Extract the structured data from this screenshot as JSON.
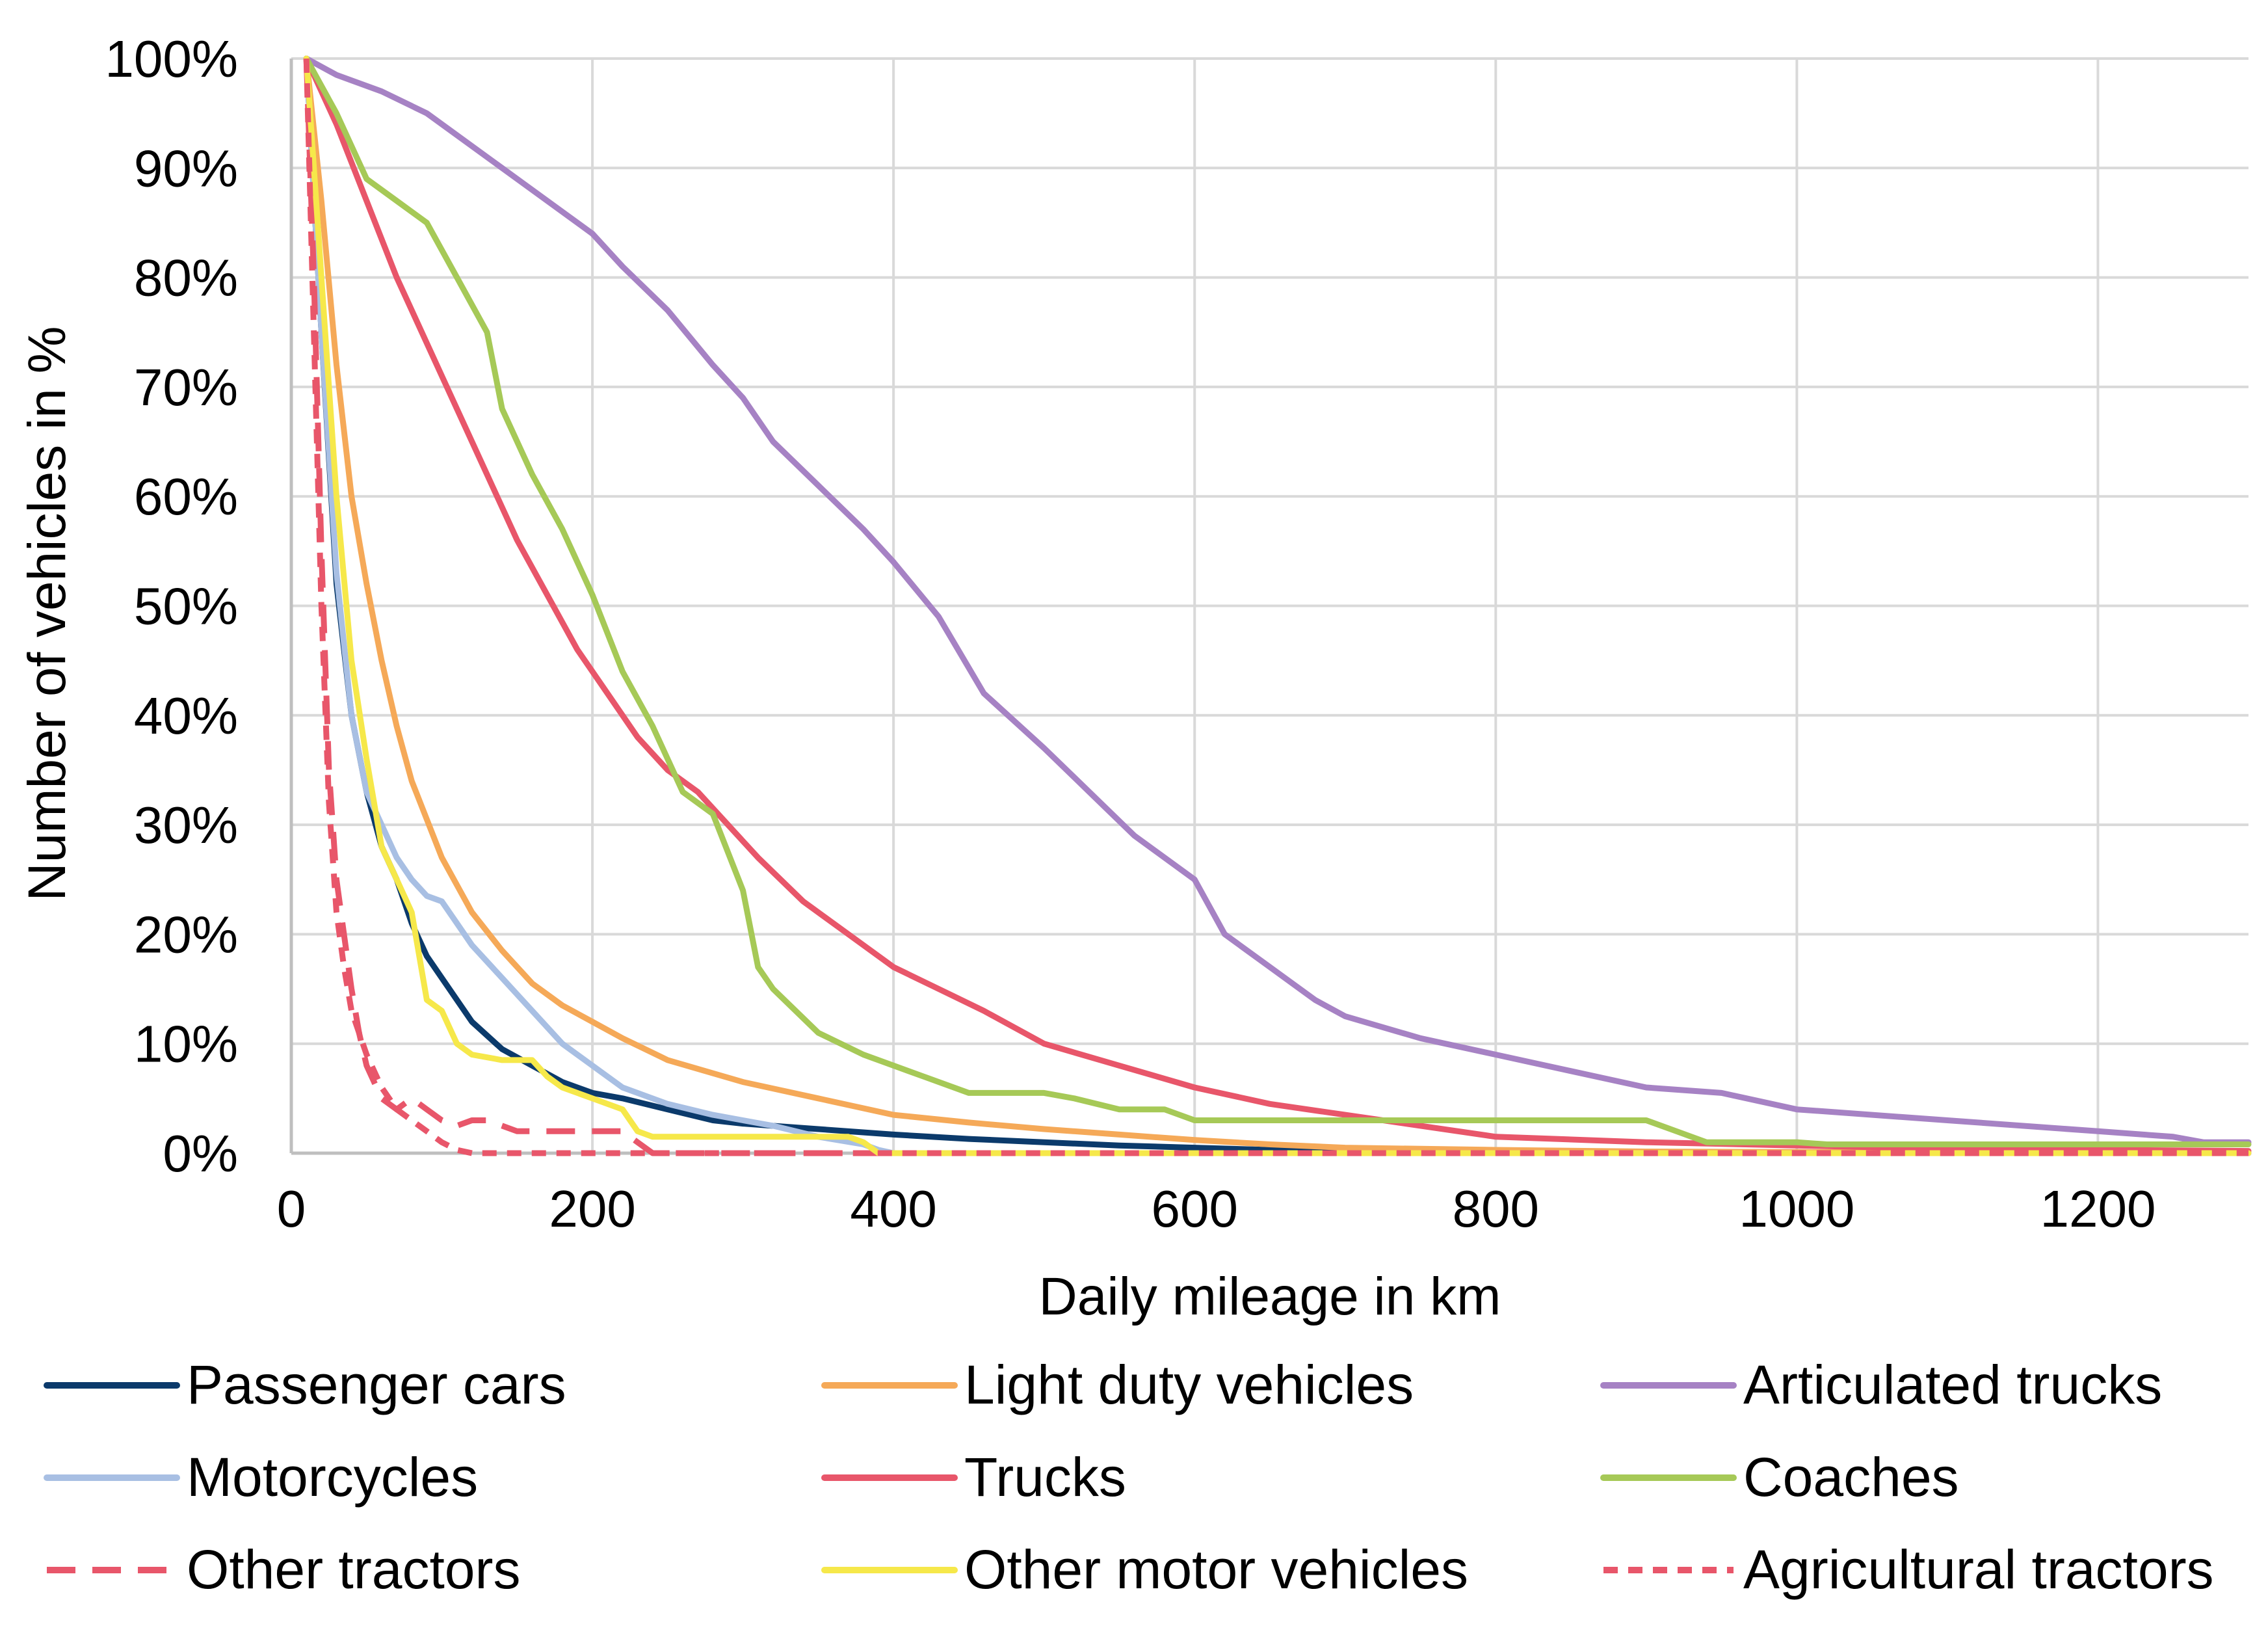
{
  "chart_data": {
    "type": "line",
    "title": "",
    "xlabel": "Daily mileage in km",
    "ylabel": "Number of vehicles in %",
    "xlim": [
      0,
      1300
    ],
    "ylim": [
      0,
      100
    ],
    "x_ticks": [
      0,
      200,
      400,
      600,
      800,
      1000,
      1200
    ],
    "x_tick_labels": [
      "0",
      "200",
      "400",
      "600",
      "800",
      "1000",
      "1200"
    ],
    "y_ticks": [
      0,
      10,
      20,
      30,
      40,
      50,
      60,
      70,
      80,
      90,
      100
    ],
    "y_tick_labels": [
      "0%",
      "10%",
      "20%",
      "30%",
      "40%",
      "50%",
      "60%",
      "70%",
      "80%",
      "90%",
      "100%"
    ],
    "grid": true,
    "legend_position": "bottom",
    "series": [
      {
        "name": "Passenger cars",
        "color": "#0B3A6B",
        "dash": "solid",
        "x": [
          10,
          20,
          30,
          40,
          50,
          60,
          70,
          80,
          90,
          100,
          110,
          120,
          140,
          160,
          180,
          200,
          220,
          250,
          280,
          300,
          350,
          400,
          450,
          500,
          550,
          600,
          650,
          700,
          800,
          900,
          1000,
          1300
        ],
        "y": [
          100,
          75,
          52,
          40,
          33,
          28,
          25,
          21,
          18,
          16,
          14,
          12,
          9.5,
          8,
          6.5,
          5.5,
          5,
          4,
          3,
          2.7,
          2.2,
          1.7,
          1.3,
          1,
          0.7,
          0.5,
          0.3,
          0.2,
          0.1,
          0.05,
          0,
          0
        ]
      },
      {
        "name": "Light duty vehicles",
        "color": "#F5A958",
        "dash": "solid",
        "x": [
          10,
          20,
          30,
          40,
          50,
          60,
          70,
          80,
          100,
          120,
          140,
          160,
          180,
          200,
          220,
          250,
          300,
          350,
          400,
          450,
          500,
          550,
          600,
          650,
          700,
          800,
          900,
          1000,
          1300
        ],
        "y": [
          100,
          87,
          72,
          60,
          52,
          45,
          39,
          34,
          27,
          22,
          18.5,
          15.5,
          13.5,
          12,
          10.5,
          8.5,
          6.5,
          5,
          3.5,
          2.8,
          2.2,
          1.7,
          1.2,
          0.8,
          0.5,
          0.3,
          0.15,
          0.1,
          0
        ]
      },
      {
        "name": "Articulated trucks",
        "color": "#A682C4",
        "dash": "solid",
        "x": [
          10,
          30,
          60,
          90,
          120,
          150,
          180,
          200,
          220,
          250,
          280,
          300,
          320,
          350,
          380,
          400,
          430,
          460,
          500,
          530,
          560,
          600,
          620,
          650,
          680,
          700,
          750,
          800,
          850,
          900,
          950,
          1000,
          1100,
          1200,
          1250,
          1270,
          1300
        ],
        "y": [
          100,
          98.5,
          97,
          95,
          92,
          89,
          86,
          84,
          81,
          77,
          72,
          69,
          65,
          61,
          57,
          54,
          49,
          42,
          37,
          33,
          29,
          25,
          20,
          17,
          14,
          12.5,
          10.5,
          9,
          7.5,
          6,
          5.5,
          4,
          3,
          2,
          1.5,
          1,
          1
        ]
      },
      {
        "name": "Motorcycles",
        "color": "#A8BFE3",
        "dash": "solid",
        "x": [
          10,
          20,
          30,
          40,
          50,
          60,
          70,
          80,
          90,
          100,
          110,
          120,
          140,
          160,
          180,
          200,
          220,
          250,
          280,
          300,
          320,
          350,
          380,
          390,
          400,
          450,
          1300
        ],
        "y": [
          100,
          75,
          53,
          40,
          33,
          30,
          27,
          25,
          23.5,
          23,
          21,
          19,
          16,
          13,
          10,
          8,
          6,
          4.5,
          3.5,
          3,
          2.5,
          1.5,
          0.8,
          0.3,
          0,
          0,
          0
        ]
      },
      {
        "name": "Trucks",
        "color": "#E8566A",
        "dash": "solid",
        "x": [
          10,
          30,
          50,
          70,
          90,
          110,
          130,
          150,
          170,
          190,
          210,
          230,
          250,
          270,
          290,
          310,
          340,
          370,
          400,
          430,
          460,
          500,
          550,
          600,
          650,
          700,
          750,
          800,
          900,
          1000,
          1100,
          1300
        ],
        "y": [
          100,
          94,
          87,
          80,
          74,
          68,
          62,
          56,
          51,
          46,
          42,
          38,
          35,
          33,
          30,
          27,
          23,
          20,
          17,
          15,
          13,
          10,
          8,
          6,
          4.5,
          3.5,
          2.5,
          1.5,
          1,
          0.7,
          0.4,
          0.2
        ]
      },
      {
        "name": "Coaches",
        "color": "#A6C957",
        "dash": "solid",
        "x": [
          10,
          30,
          50,
          70,
          90,
          110,
          130,
          140,
          160,
          180,
          200,
          220,
          240,
          260,
          280,
          300,
          310,
          320,
          350,
          380,
          400,
          420,
          450,
          500,
          520,
          550,
          580,
          600,
          700,
          800,
          900,
          920,
          940,
          1000,
          1020,
          1300
        ],
        "y": [
          100,
          95,
          89,
          87,
          85,
          80,
          75,
          68,
          62,
          57,
          51,
          44,
          39,
          33,
          31,
          24,
          17,
          15,
          11,
          9,
          8,
          7,
          5.5,
          5.5,
          5,
          4,
          4,
          3,
          3,
          3,
          3,
          2,
          1,
          1,
          0.8,
          0.8
        ]
      },
      {
        "name": "Other tractors",
        "color": "#E8566A",
        "dash": "long-dash",
        "x": [
          10,
          15,
          20,
          25,
          30,
          35,
          40,
          45,
          50,
          60,
          70,
          80,
          90,
          100,
          110,
          120,
          130,
          150,
          160,
          180,
          200,
          220,
          230,
          240,
          300,
          1300
        ],
        "y": [
          100,
          80,
          55,
          35,
          25,
          20,
          15,
          11,
          8,
          5,
          4,
          5,
          4,
          3,
          2.5,
          3,
          3,
          2,
          2,
          2,
          2,
          2,
          1,
          0,
          0,
          0
        ]
      },
      {
        "name": "Other motor vehicles",
        "color": "#F6E84A",
        "dash": "solid",
        "x": [
          10,
          20,
          30,
          40,
          50,
          60,
          70,
          80,
          90,
          100,
          110,
          120,
          140,
          160,
          170,
          180,
          200,
          220,
          230,
          240,
          300,
          370,
          380,
          390,
          1300
        ],
        "y": [
          100,
          80,
          60,
          45,
          36,
          28,
          25,
          22,
          14,
          13,
          10,
          9,
          8.5,
          8.5,
          7,
          6,
          5,
          4,
          2,
          1.5,
          1.5,
          1.5,
          1,
          0,
          0
        ]
      },
      {
        "name": "Agricultural tractors",
        "color": "#E8566A",
        "dash": "short-dash",
        "x": [
          10,
          15,
          20,
          25,
          30,
          35,
          40,
          50,
          60,
          70,
          80,
          90,
          100,
          110,
          120,
          1300
        ],
        "y": [
          100,
          75,
          50,
          32,
          22,
          17,
          13,
          9,
          6,
          4,
          3,
          2,
          1,
          0.3,
          0,
          0
        ]
      }
    ]
  }
}
